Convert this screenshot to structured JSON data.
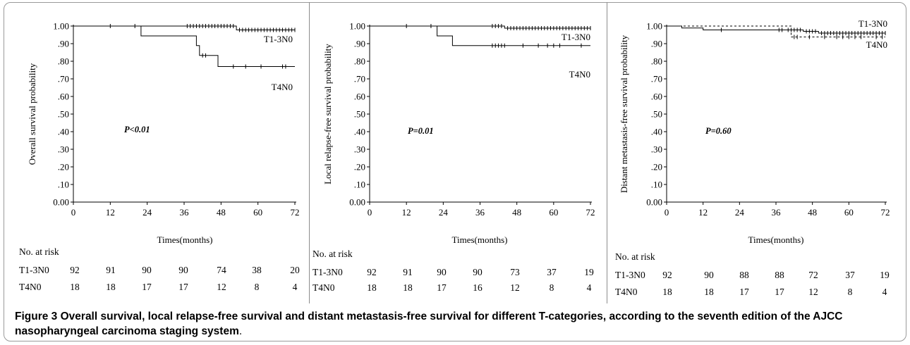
{
  "figure": {
    "caption_label": "Figure 3",
    "caption_text": "Overall survival, local relapse-free survival and distant metastasis-free survival for different T-categories, according to the seventh edition of the AJCC nasopharyngeal carcinoma staging system",
    "caption_end": "."
  },
  "chart_data": [
    {
      "type": "line",
      "ylabel": "Overall survival probability",
      "xlabel": "Times(months)",
      "ylim": [
        0,
        1
      ],
      "xlim": [
        0,
        72
      ],
      "x_ticks": [
        "0",
        "12",
        "24",
        "36",
        "48",
        "60",
        "72"
      ],
      "y_ticks": [
        "0.00",
        ".10",
        ".20",
        ".30",
        ".40",
        ".50",
        ".60",
        ".70",
        ".80",
        ".90",
        "1.00"
      ],
      "annotation": "P<0.01",
      "risk_header": "No. at risk",
      "series": [
        {
          "name": "T1-3N0",
          "dashed": false,
          "steps": [
            [
              0,
              1.0
            ],
            [
              53,
              0.978
            ],
            [
              72,
              0.978
            ]
          ],
          "censors": [
            12,
            20,
            37,
            38,
            39,
            40,
            41,
            42,
            43,
            44,
            45,
            46,
            47,
            48,
            49,
            50,
            51,
            52,
            54,
            55,
            56,
            57,
            58,
            59,
            60,
            61,
            62,
            63,
            64,
            65,
            66,
            67,
            68,
            69,
            70,
            71,
            72
          ],
          "risk": [
            "92",
            "91",
            "90",
            "90",
            "74",
            "38",
            "20"
          ]
        },
        {
          "name": "T4N0",
          "dashed": false,
          "steps": [
            [
              0,
              1.0
            ],
            [
              22,
              0.944
            ],
            [
              40,
              0.889
            ],
            [
              41,
              0.833
            ],
            [
              47,
              0.77
            ],
            [
              72,
              0.77
            ]
          ],
          "censors": [
            42,
            43,
            52,
            56,
            61,
            68,
            69
          ],
          "risk": [
            "18",
            "18",
            "17",
            "17",
            "12",
            "8",
            "4"
          ]
        }
      ]
    },
    {
      "type": "line",
      "ylabel": "Local relapse-free survival probability",
      "xlabel": "Times(months)",
      "ylim": [
        0,
        1
      ],
      "xlim": [
        0,
        72
      ],
      "x_ticks": [
        "0",
        "12",
        "24",
        "36",
        "48",
        "60",
        "72"
      ],
      "y_ticks": [
        "0.00",
        ".10",
        ".20",
        ".30",
        ".40",
        ".50",
        ".60",
        ".70",
        ".80",
        ".90",
        "1.00"
      ],
      "annotation": "P=0.01",
      "risk_header": "No. at risk",
      "series": [
        {
          "name": "T1-3N0",
          "dashed": false,
          "steps": [
            [
              0,
              1.0
            ],
            [
              44,
              0.988
            ],
            [
              72,
              0.988
            ]
          ],
          "censors": [
            12,
            20,
            40,
            41,
            42,
            43,
            45,
            46,
            47,
            48,
            49,
            50,
            51,
            52,
            53,
            54,
            55,
            56,
            57,
            58,
            59,
            60,
            61,
            62,
            63,
            64,
            65,
            66,
            67,
            68,
            69,
            70,
            71,
            72
          ],
          "risk": [
            "92",
            "91",
            "90",
            "90",
            "73",
            "37",
            "19"
          ]
        },
        {
          "name": "T4N0",
          "dashed": false,
          "steps": [
            [
              0,
              1.0
            ],
            [
              22,
              0.944
            ],
            [
              27,
              0.889
            ],
            [
              72,
              0.889
            ]
          ],
          "censors": [
            40,
            41,
            42,
            43,
            44,
            50,
            55,
            58,
            60,
            62,
            69
          ],
          "risk": [
            "18",
            "18",
            "17",
            "16",
            "12",
            "8",
            "4"
          ]
        }
      ]
    },
    {
      "type": "line",
      "ylabel": "Distant metastasis-free survival probability",
      "xlabel": "Times(months)",
      "ylim": [
        0,
        1
      ],
      "xlim": [
        0,
        72
      ],
      "x_ticks": [
        "0",
        "12",
        "24",
        "36",
        "48",
        "60",
        "72"
      ],
      "y_ticks": [
        "0.00",
        ".10",
        ".20",
        ".30",
        ".40",
        ".50",
        ".60",
        ".70",
        ".80",
        ".90",
        "1.00"
      ],
      "annotation": "P=0.60",
      "risk_header": "No. at risk",
      "series": [
        {
          "name": "T1-3N0",
          "dashed": false,
          "steps": [
            [
              0,
              1.0
            ],
            [
              5,
              0.989
            ],
            [
              12,
              0.978
            ],
            [
              45,
              0.97
            ],
            [
              50,
              0.96
            ],
            [
              72,
              0.96
            ]
          ],
          "censors": [
            18,
            37,
            38,
            40,
            41,
            42,
            43,
            44,
            46,
            47,
            48,
            49,
            51,
            52,
            53,
            54,
            55,
            56,
            57,
            58,
            59,
            60,
            61,
            62,
            63,
            64,
            65,
            66,
            67,
            68,
            69,
            70,
            71,
            72
          ],
          "risk": [
            "92",
            "90",
            "88",
            "88",
            "72",
            "37",
            "19"
          ]
        },
        {
          "name": "T4N0",
          "dashed": true,
          "steps": [
            [
              0,
              1.0
            ],
            [
              41,
              0.938
            ],
            [
              72,
              0.938
            ]
          ],
          "censors": [
            42,
            43,
            47,
            52,
            56,
            58,
            60,
            62,
            64,
            69,
            71
          ],
          "risk": [
            "18",
            "18",
            "17",
            "17",
            "12",
            "8",
            "4"
          ]
        }
      ]
    }
  ]
}
